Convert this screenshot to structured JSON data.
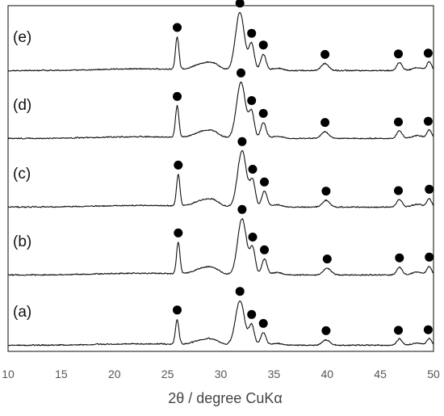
{
  "chart_data": {
    "type": "line",
    "title": "",
    "xlabel": "2θ / degree CuKα",
    "ylabel": "",
    "xlim": [
      10,
      50
    ],
    "x_ticks": [
      "10",
      "15",
      "20",
      "25",
      "30",
      "35",
      "40",
      "45",
      "50"
    ],
    "y_ticks": [],
    "grid": false,
    "marker_symbol": "●",
    "series": [
      {
        "name": "(a)",
        "peak_positions": [
          25.9,
          31.8,
          32.9,
          34.0,
          39.9,
          46.7,
          49.5
        ]
      },
      {
        "name": "(b)",
        "peak_positions": [
          26.0,
          32.0,
          33.0,
          34.1,
          40.0,
          46.8,
          49.6
        ]
      },
      {
        "name": "(c)",
        "peak_positions": [
          26.0,
          32.0,
          33.0,
          34.1,
          39.9,
          46.7,
          49.6
        ]
      },
      {
        "name": "(d)",
        "peak_positions": [
          25.9,
          31.9,
          32.9,
          34.0,
          39.8,
          46.7,
          49.5
        ]
      },
      {
        "name": "(e)",
        "peak_positions": [
          25.9,
          31.8,
          32.9,
          34.0,
          39.8,
          46.7,
          49.5
        ]
      }
    ]
  }
}
